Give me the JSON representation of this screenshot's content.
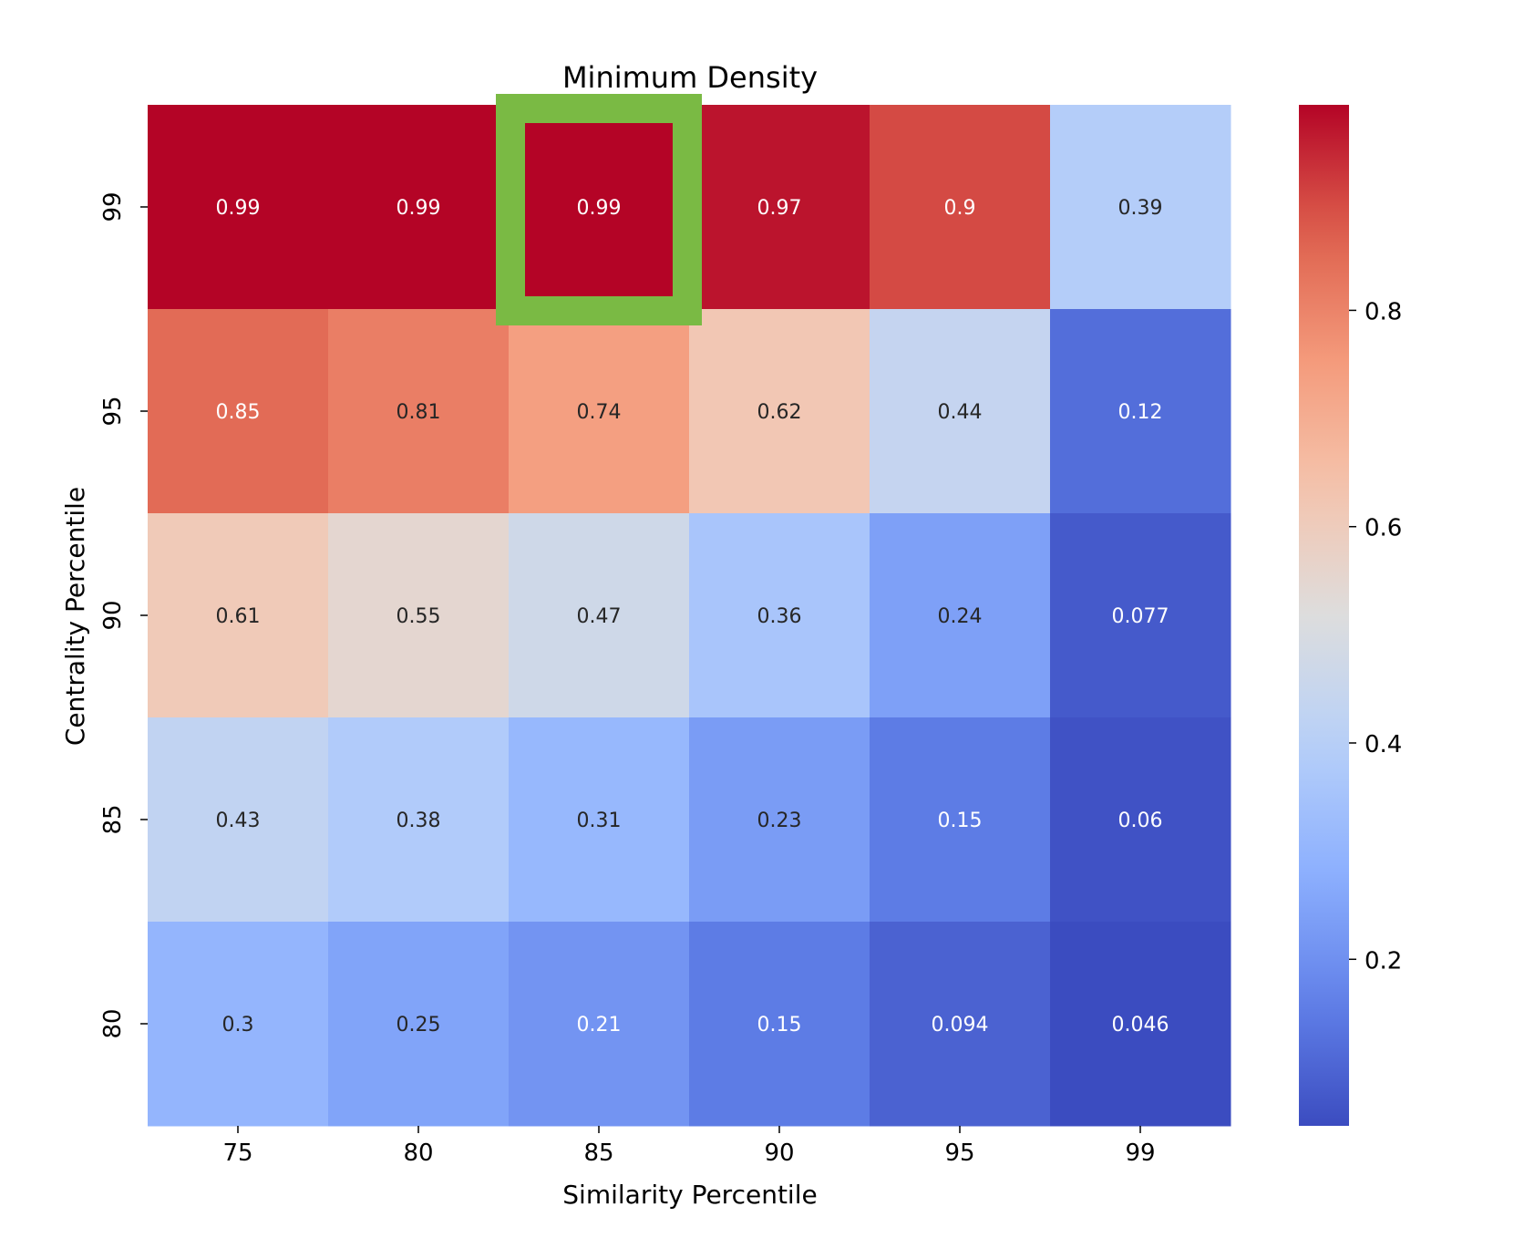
{
  "chart_data": {
    "type": "heatmap",
    "title": "Minimum Density",
    "xlabel": "Similarity Percentile",
    "ylabel": "Centrality Percentile",
    "x_categories": [
      "75",
      "80",
      "85",
      "90",
      "95",
      "99"
    ],
    "y_categories": [
      "99",
      "95",
      "90",
      "85",
      "80"
    ],
    "values": [
      [
        0.99,
        0.99,
        0.99,
        0.97,
        0.9,
        0.39
      ],
      [
        0.85,
        0.81,
        0.74,
        0.62,
        0.44,
        0.12
      ],
      [
        0.61,
        0.55,
        0.47,
        0.36,
        0.24,
        0.077
      ],
      [
        0.43,
        0.38,
        0.31,
        0.23,
        0.15,
        0.06
      ],
      [
        0.3,
        0.25,
        0.21,
        0.15,
        0.094,
        0.046
      ]
    ],
    "colormap": "coolwarm",
    "color_range": [
      0.046,
      0.99
    ],
    "colorbar_ticks": [
      "0.2",
      "0.4",
      "0.6",
      "0.8"
    ],
    "colorbar_tick_values": [
      0.2,
      0.4,
      0.6,
      0.8
    ],
    "highlight": {
      "row": 0,
      "col": 2,
      "color": "#7aba44"
    },
    "grid": false,
    "legend": "colorbar-right"
  }
}
